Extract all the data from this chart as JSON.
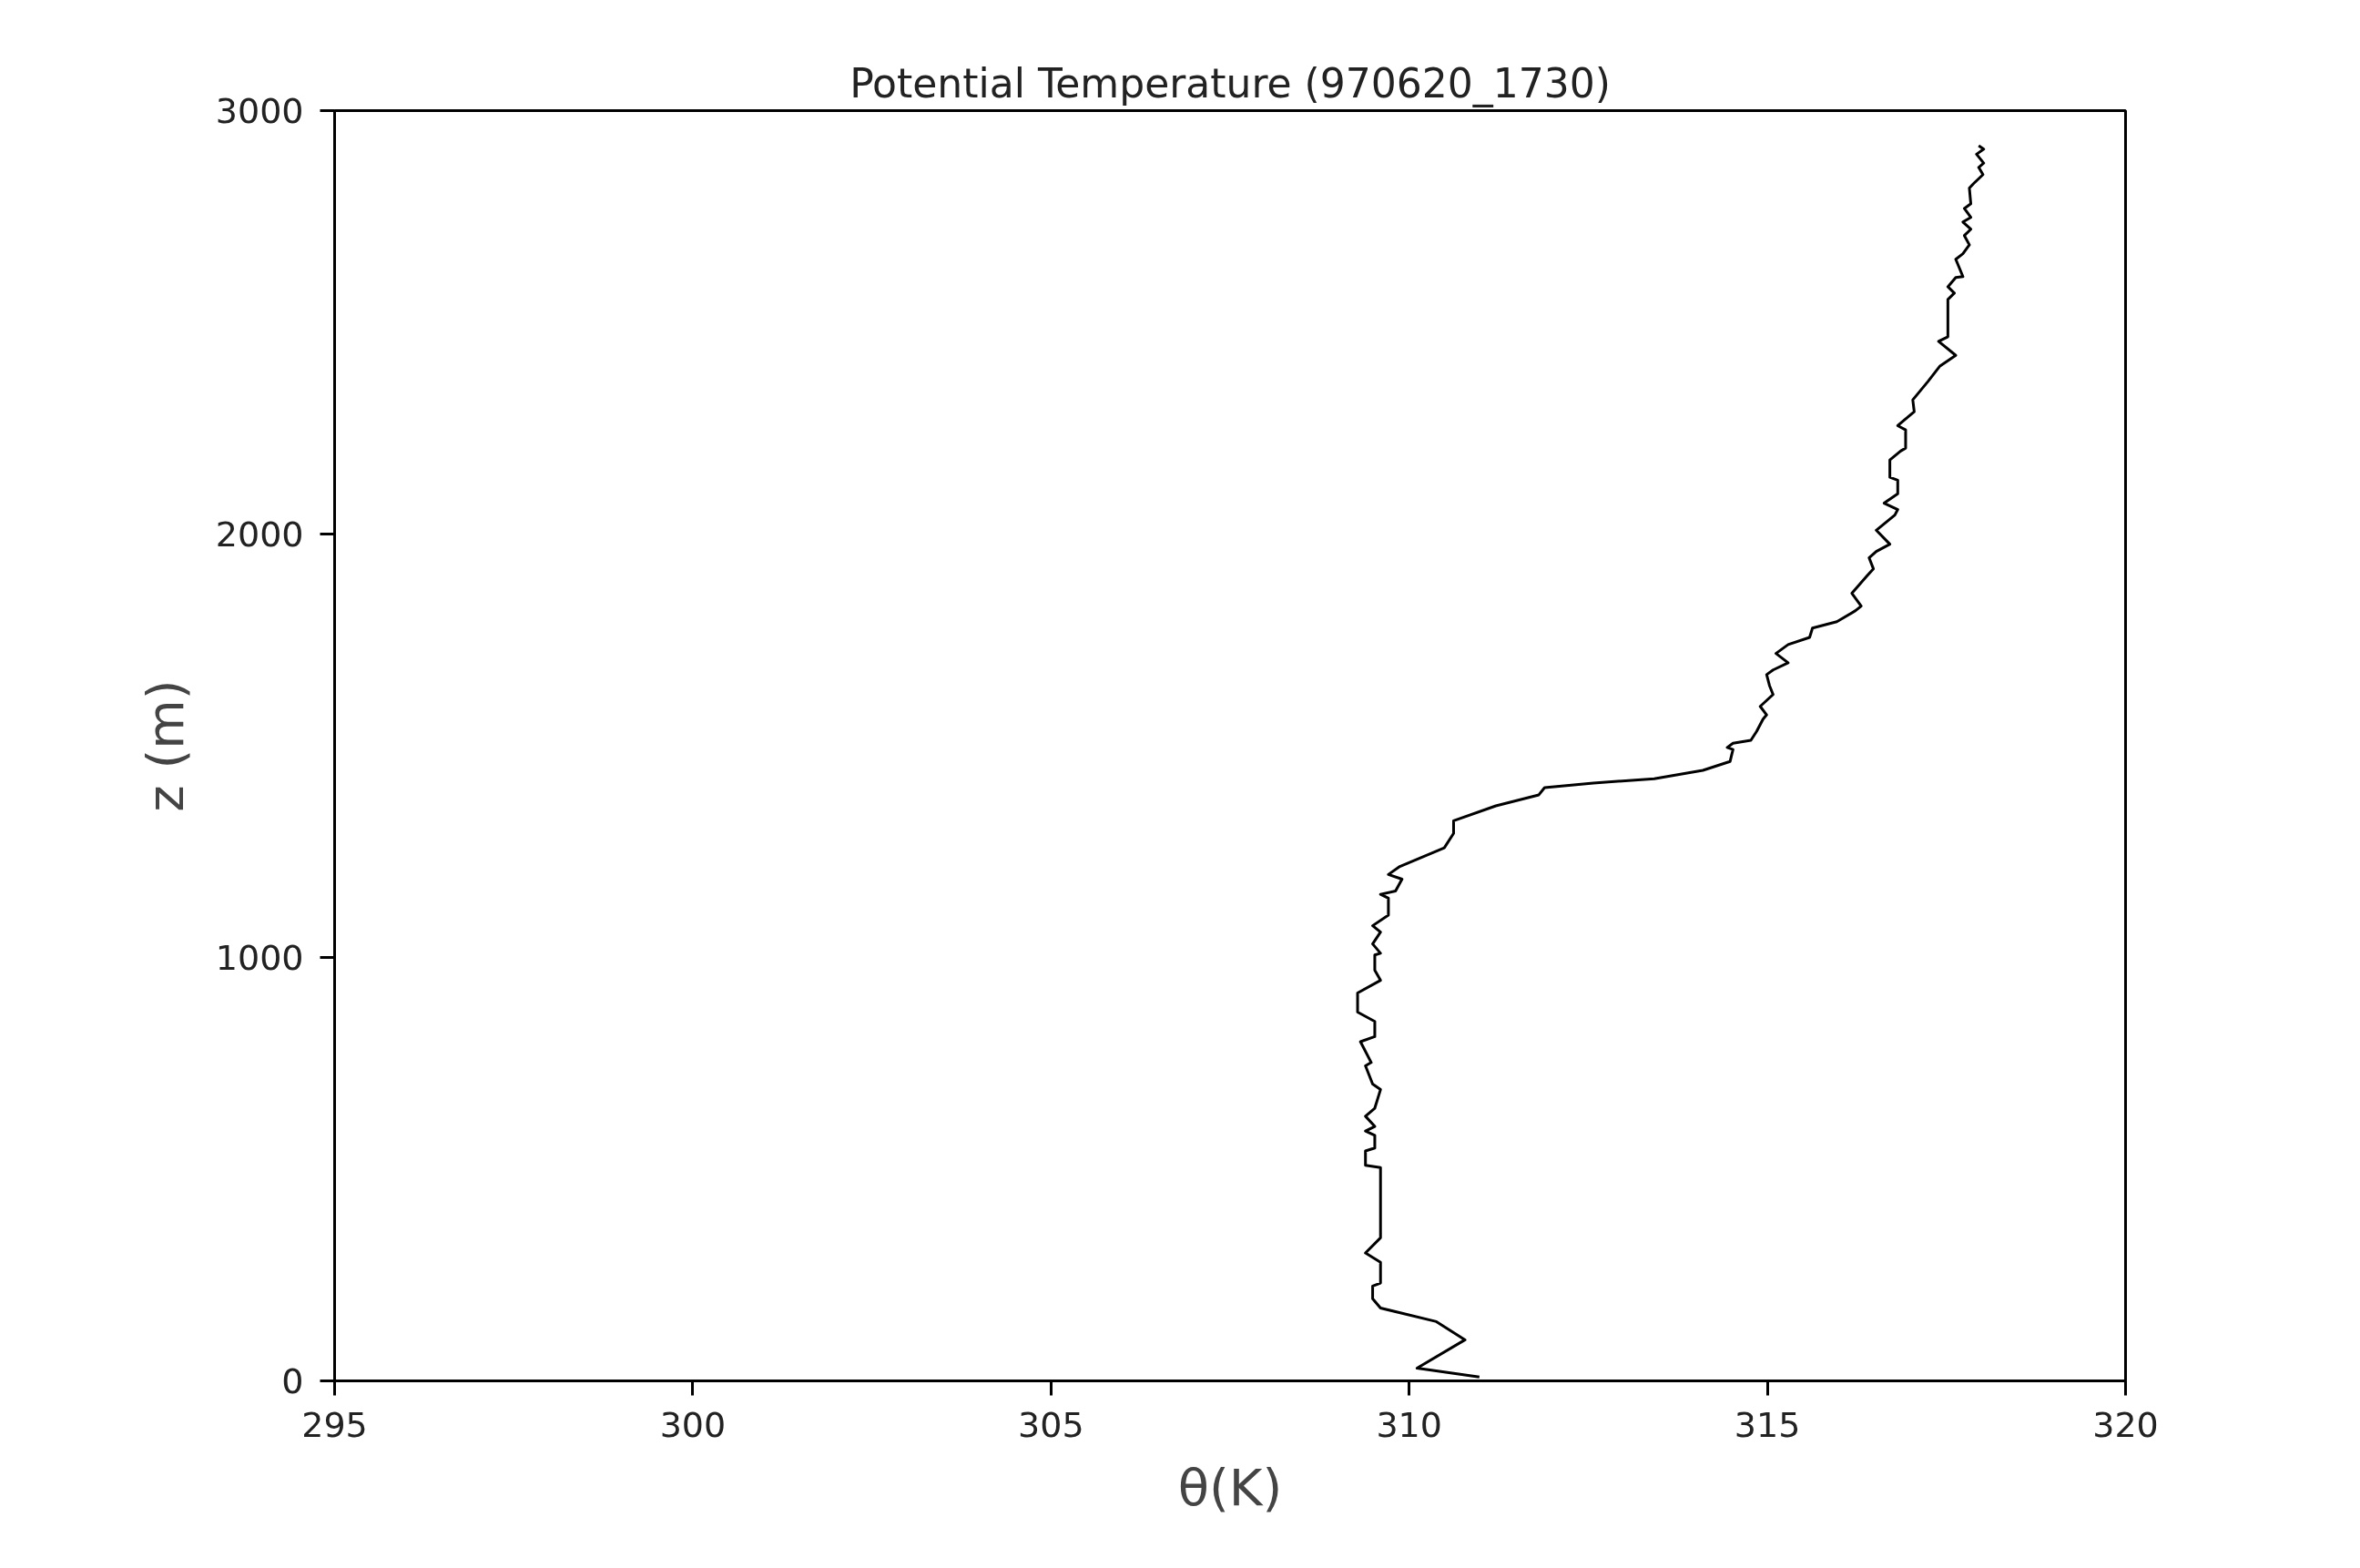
{
  "chart_data": {
    "type": "line",
    "title": "Potential Temperature (970620_1730)",
    "xlabel": "θ(K)",
    "ylabel": "z (m)",
    "xlim": [
      295,
      320
    ],
    "ylim": [
      0,
      3000
    ],
    "xticks": [
      295,
      300,
      305,
      310,
      315,
      320
    ],
    "yticks": [
      0,
      1000,
      2000,
      3000
    ],
    "grid": false,
    "marker": "none",
    "line_style": "solid",
    "series": [
      {
        "color": "#000000",
        "x": [
          310.98,
          310.11,
          310.78,
          310.38,
          309.6,
          309.49,
          309.49,
          309.6,
          309.6,
          309.39,
          309.6,
          309.6,
          309.39,
          309.39,
          309.52,
          309.52,
          309.39,
          309.52,
          309.39,
          309.52,
          309.6,
          309.49,
          309.39,
          309.47,
          309.32,
          309.52,
          309.52,
          309.28,
          309.28,
          309.6,
          309.52,
          309.52,
          309.6,
          309.49,
          309.6,
          309.49,
          309.71,
          309.71,
          309.6,
          309.81,
          309.9,
          309.71,
          309.87,
          310.49,
          310.62,
          310.62,
          311.21,
          311.81,
          311.89,
          312.57,
          313.42,
          314.1,
          314.48,
          314.52,
          314.44,
          314.52,
          314.77,
          314.85,
          314.94,
          314.99,
          314.9,
          315.08,
          315.03,
          314.99,
          315.08,
          315.29,
          315.12,
          315.29,
          315.59,
          315.63,
          315.97,
          316.23,
          316.31,
          316.18,
          316.39,
          316.48,
          316.42,
          316.52,
          316.71,
          316.52,
          316.78,
          316.82,
          316.63,
          316.82,
          316.82,
          316.71,
          316.71,
          316.86,
          316.93,
          316.93,
          316.82,
          317.05,
          317.03,
          317.24,
          317.41,
          317.63,
          317.39,
          317.52,
          317.52,
          317.61,
          317.52,
          317.63,
          317.73,
          317.63,
          317.73,
          317.82,
          317.75,
          317.84,
          317.73,
          317.84,
          317.75,
          317.84,
          317.82,
          317.88,
          318.01,
          317.95,
          318.02,
          317.92,
          318.02,
          317.95
        ],
        "values": [
          9,
          30,
          97,
          140,
          172,
          194,
          224,
          231,
          280,
          302,
          338,
          504,
          509,
          543,
          550,
          580,
          590,
          601,
          625,
          644,
          688,
          701,
          744,
          752,
          801,
          813,
          849,
          871,
          916,
          946,
          970,
          1006,
          1010,
          1032,
          1060,
          1075,
          1100,
          1140,
          1149,
          1157,
          1185,
          1196,
          1215,
          1259,
          1293,
          1323,
          1358,
          1384,
          1401,
          1412,
          1422,
          1442,
          1463,
          1491,
          1496,
          1506,
          1513,
          1534,
          1563,
          1573,
          1593,
          1621,
          1642,
          1668,
          1679,
          1696,
          1718,
          1739,
          1756,
          1778,
          1793,
          1819,
          1830,
          1860,
          1901,
          1918,
          1944,
          1959,
          1976,
          2009,
          2045,
          2058,
          2073,
          2095,
          2127,
          2134,
          2175,
          2196,
          2203,
          2246,
          2256,
          2289,
          2317,
          2360,
          2397,
          2422,
          2455,
          2466,
          2554,
          2569,
          2584,
          2606,
          2608,
          2649,
          2662,
          2683,
          2705,
          2720,
          2737,
          2748,
          2769,
          2780,
          2817,
          2828,
          2849,
          2866,
          2876,
          2897,
          2909,
          2917
        ]
      }
    ]
  }
}
